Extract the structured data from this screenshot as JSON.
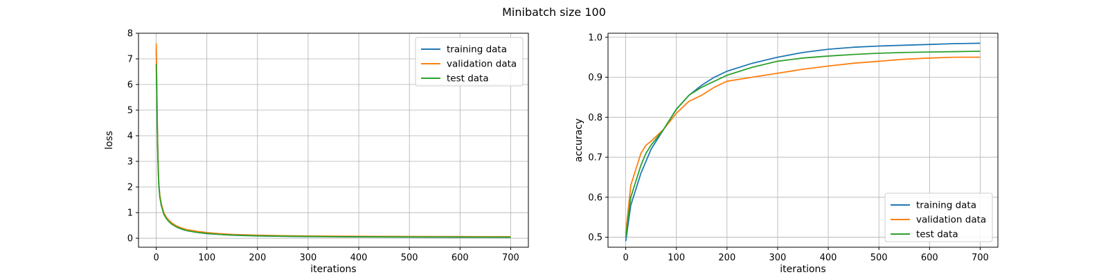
{
  "figure": {
    "title": "Minibatch size 100"
  },
  "chart_data": [
    {
      "type": "line",
      "xlabel": "iterations",
      "ylabel": "loss",
      "xlim": [
        -35,
        735
      ],
      "ylim": [
        -0.35,
        8.0
      ],
      "xticks": [
        0,
        100,
        200,
        300,
        400,
        500,
        600,
        700
      ],
      "yticks": [
        0,
        1,
        2,
        3,
        4,
        5,
        6,
        7,
        8
      ],
      "grid": true,
      "legend_position": "top-right",
      "series": [
        {
          "name": "training data",
          "color": "#1f77b4",
          "x": [
            0,
            1,
            2,
            3,
            4,
            5,
            7,
            10,
            15,
            20,
            25,
            30,
            40,
            50,
            60,
            80,
            100,
            125,
            150,
            200,
            250,
            300,
            350,
            400,
            450,
            500,
            550,
            600,
            650,
            700
          ],
          "y": [
            7.4,
            6.0,
            4.6,
            3.5,
            2.7,
            2.15,
            1.65,
            1.3,
            0.95,
            0.78,
            0.66,
            0.57,
            0.44,
            0.36,
            0.3,
            0.23,
            0.18,
            0.15,
            0.12,
            0.09,
            0.075,
            0.065,
            0.058,
            0.052,
            0.048,
            0.045,
            0.042,
            0.04,
            0.038,
            0.036
          ]
        },
        {
          "name": "validation data",
          "color": "#ff7f0e",
          "x": [
            0,
            1,
            2,
            3,
            4,
            5,
            7,
            10,
            15,
            20,
            25,
            30,
            40,
            50,
            60,
            80,
            100,
            125,
            150,
            200,
            250,
            300,
            350,
            400,
            450,
            500,
            550,
            600,
            650,
            700
          ],
          "y": [
            7.6,
            6.1,
            4.7,
            3.6,
            2.8,
            2.2,
            1.7,
            1.35,
            1.0,
            0.82,
            0.7,
            0.61,
            0.48,
            0.4,
            0.34,
            0.27,
            0.22,
            0.18,
            0.15,
            0.12,
            0.1,
            0.09,
            0.082,
            0.076,
            0.072,
            0.069,
            0.066,
            0.064,
            0.062,
            0.06
          ]
        },
        {
          "name": "test data",
          "color": "#2ca02c",
          "x": [
            0,
            1,
            2,
            3,
            4,
            5,
            7,
            10,
            15,
            20,
            25,
            30,
            40,
            50,
            60,
            80,
            100,
            125,
            150,
            200,
            250,
            300,
            350,
            400,
            450,
            500,
            550,
            600,
            650,
            700
          ],
          "y": [
            6.8,
            5.7,
            4.4,
            3.4,
            2.6,
            2.1,
            1.62,
            1.28,
            0.94,
            0.77,
            0.65,
            0.56,
            0.44,
            0.36,
            0.3,
            0.23,
            0.19,
            0.15,
            0.125,
            0.095,
            0.08,
            0.07,
            0.063,
            0.058,
            0.054,
            0.051,
            0.049,
            0.047,
            0.045,
            0.044
          ]
        }
      ]
    },
    {
      "type": "line",
      "xlabel": "iterations",
      "ylabel": "accuracy",
      "xlim": [
        -35,
        735
      ],
      "ylim": [
        0.475,
        1.01
      ],
      "xticks": [
        0,
        100,
        200,
        300,
        400,
        500,
        600,
        700
      ],
      "yticks": [
        0.5,
        0.6,
        0.7,
        0.8,
        0.9,
        1.0
      ],
      "grid": true,
      "legend_position": "lower-right",
      "series": [
        {
          "name": "training data",
          "color": "#1f77b4",
          "x": [
            0,
            10,
            20,
            30,
            40,
            50,
            75,
            100,
            125,
            150,
            175,
            200,
            250,
            300,
            350,
            400,
            450,
            500,
            550,
            600,
            650,
            700
          ],
          "y": [
            0.49,
            0.58,
            0.62,
            0.66,
            0.69,
            0.72,
            0.77,
            0.82,
            0.855,
            0.88,
            0.9,
            0.915,
            0.935,
            0.95,
            0.962,
            0.97,
            0.975,
            0.978,
            0.98,
            0.982,
            0.984,
            0.985
          ]
        },
        {
          "name": "validation data",
          "color": "#ff7f0e",
          "x": [
            0,
            10,
            20,
            30,
            40,
            50,
            75,
            100,
            125,
            150,
            175,
            200,
            250,
            300,
            350,
            400,
            450,
            500,
            550,
            600,
            650,
            700
          ],
          "y": [
            0.51,
            0.63,
            0.67,
            0.71,
            0.73,
            0.74,
            0.77,
            0.81,
            0.84,
            0.855,
            0.875,
            0.89,
            0.9,
            0.91,
            0.92,
            0.928,
            0.935,
            0.94,
            0.945,
            0.948,
            0.95,
            0.95
          ]
        },
        {
          "name": "test data",
          "color": "#2ca02c",
          "x": [
            0,
            10,
            20,
            30,
            40,
            50,
            75,
            100,
            125,
            150,
            175,
            200,
            250,
            300,
            350,
            400,
            450,
            500,
            550,
            600,
            650,
            700
          ],
          "y": [
            0.5,
            0.6,
            0.64,
            0.68,
            0.71,
            0.73,
            0.77,
            0.82,
            0.855,
            0.875,
            0.89,
            0.905,
            0.925,
            0.94,
            0.948,
            0.953,
            0.957,
            0.96,
            0.962,
            0.963,
            0.964,
            0.965
          ]
        }
      ]
    }
  ]
}
